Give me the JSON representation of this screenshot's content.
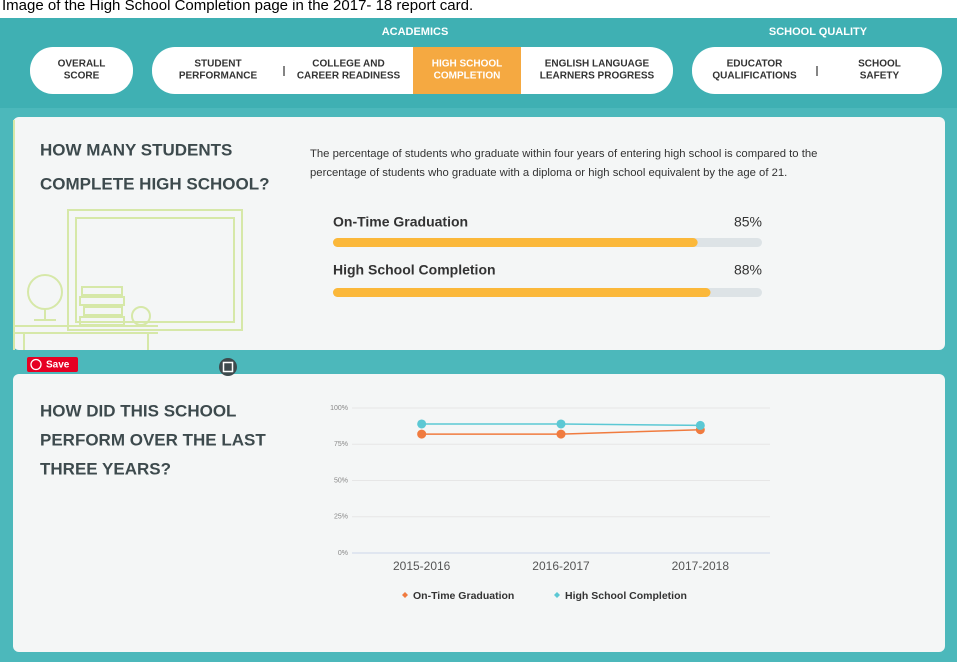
{
  "caption": "Image of the High School Completion page in the 2017- 18 report card.",
  "nav": {
    "groups": [
      "ACADEMICS",
      "SCHOOL QUALITY"
    ],
    "tabs": [
      {
        "lines": [
          "OVERALL",
          "SCORE"
        ]
      },
      {
        "lines": [
          "STUDENT",
          "PERFORMANCE"
        ]
      },
      {
        "lines": [
          "COLLEGE AND",
          "CAREER READINESS"
        ]
      },
      {
        "lines": [
          "HIGH SCHOOL",
          "COMPLETION"
        ],
        "active": true
      },
      {
        "lines": [
          "ENGLISH LANGUAGE",
          "LEARNERS PROGRESS"
        ]
      },
      {
        "lines": [
          "EDUCATOR",
          "QUALIFICATIONS"
        ]
      },
      {
        "lines": [
          "SCHOOL",
          "SAFETY"
        ]
      }
    ]
  },
  "save_button": "Save",
  "completion": {
    "heading": [
      "HOW MANY STUDENTS",
      "COMPLETE HIGH SCHOOL?"
    ],
    "description": [
      "The percentage of students who graduate within four years of entering high school is compared to the",
      "percentage of students who graduate with a diploma or high school equivalent by the age of 21."
    ],
    "xlim": [
      0,
      100
    ],
    "color": "#fbb83a",
    "bars": [
      {
        "label": "On-Time Graduation",
        "value": 85,
        "value_label": "85%"
      },
      {
        "label": "High School Completion",
        "value": 88,
        "value_label": "88%"
      }
    ]
  },
  "performance": {
    "heading": [
      "HOW DID THIS SCHOOL",
      "PERFORM OVER THE LAST",
      "THREE YEARS?"
    ],
    "chart": {
      "type": "line",
      "categories": [
        "2015-2016",
        "2016-2017",
        "2017-2018"
      ],
      "series": [
        {
          "name": "On-Time Graduation",
          "color": "#f07b3f",
          "values": [
            82,
            82,
            85
          ]
        },
        {
          "name": "High School Completion",
          "color": "#5bc8d4",
          "values": [
            89,
            89,
            88
          ]
        }
      ],
      "ylim": [
        0,
        100
      ],
      "yticks": [
        {
          "value": 0,
          "label": "0%"
        },
        {
          "value": 25,
          "label": "25%"
        },
        {
          "value": 50,
          "label": "50%"
        },
        {
          "value": 75,
          "label": "75%"
        },
        {
          "value": 100,
          "label": "100%"
        }
      ],
      "grid": true
    }
  }
}
